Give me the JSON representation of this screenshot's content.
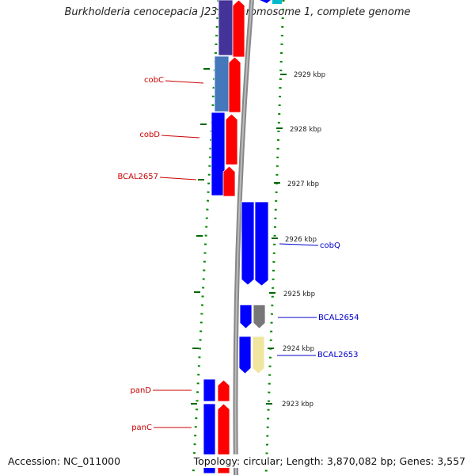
{
  "title": "Burkholderia cenocepacia J2315 chromosome 1, complete genome",
  "footer": {
    "accession": "Accession: NC_011000",
    "topology": "Topology: circular; Length: 3,870,082 bp; Genes: 3,557"
  },
  "colors": {
    "forward_label": "#cc0000",
    "reverse_label": "#0000cc",
    "red": "#ff0000",
    "blue": "#0000ff",
    "gray": "#777777",
    "khaki": "#f0e6a0",
    "cog_coenzyme_blue": "#4477bb",
    "cog_purple": "#443399",
    "tick_green": "#006600",
    "backbone": "#888888"
  },
  "scale": {
    "unit": "kbp",
    "ticks": [
      "2929 kbp",
      "2928 kbp",
      "2927 kbp",
      "2926 kbp",
      "2925 kbp",
      "2924 kbp",
      "2923 kbp"
    ]
  },
  "gene_labels": [
    {
      "name": "cobC",
      "strand": "forward"
    },
    {
      "name": "cobD",
      "strand": "forward"
    },
    {
      "name": "BCAL2657",
      "strand": "forward"
    },
    {
      "name": "cobQ",
      "strand": "reverse"
    },
    {
      "name": "BCAL2654",
      "strand": "reverse"
    },
    {
      "name": "BCAL2653",
      "strand": "reverse"
    },
    {
      "name": "panD",
      "strand": "forward"
    },
    {
      "name": "panC",
      "strand": "forward"
    }
  ]
}
